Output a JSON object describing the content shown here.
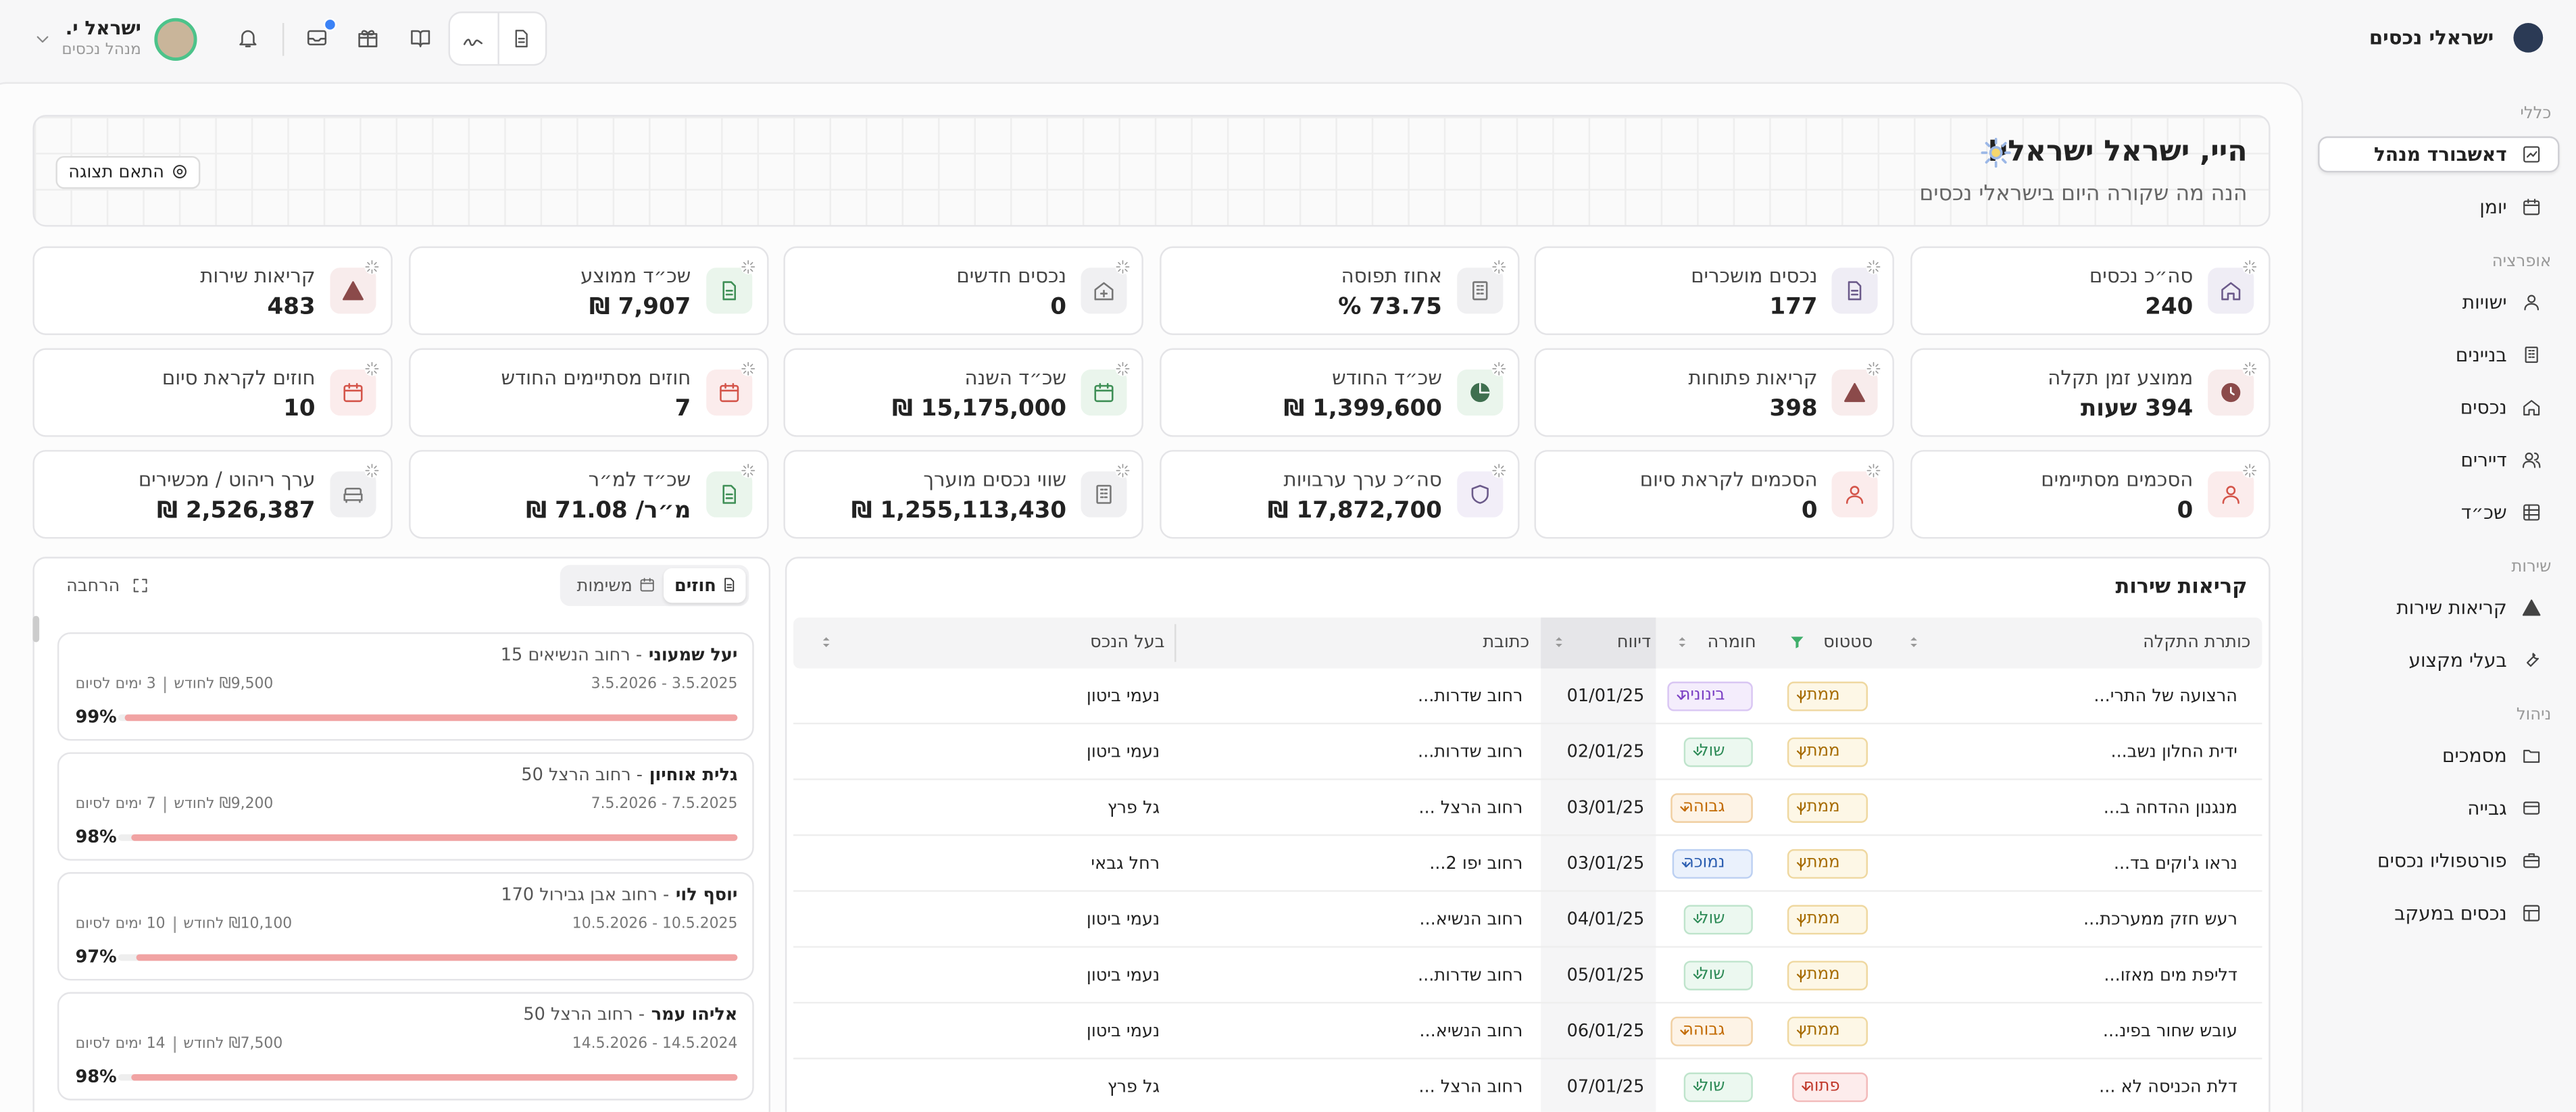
{
  "header": {
    "brand": "ישראלי נכסים",
    "user_name": "ישראל י.",
    "user_role": "מנהל נכסים"
  },
  "sidebar": {
    "sections": [
      {
        "title": "כללי",
        "items": [
          "דאשבורד מנהל",
          "יומן"
        ]
      },
      {
        "title": "אופרציה",
        "items": [
          "ישויות",
          "בניינים",
          "נכסים",
          "דיירים",
          "שכ״ד"
        ]
      },
      {
        "title": "שירות",
        "items": [
          "קריאות שירות",
          "בעלי מקצוע"
        ]
      },
      {
        "title": "ניהול",
        "items": [
          "מסמכים",
          "גבייה",
          "פורטפוליו נכסים",
          "נכסים במעקב"
        ]
      }
    ]
  },
  "welcome": {
    "title": "היי, ישראל ישראלי!",
    "subtitle": "הנה מה שקורה היום בישראלי נכסים",
    "customize_button": "התאם תצוגה"
  },
  "stats": [
    {
      "label": "סה״כ נכסים",
      "value": "240"
    },
    {
      "label": "נכסים מושכרים",
      "value": "177"
    },
    {
      "label": "אחוז תפוסה",
      "value": "73.75 %"
    },
    {
      "label": "נכסים חדשים",
      "value": "0"
    },
    {
      "label": "שכ״ד ממוצע",
      "value": "7,907 ₪"
    },
    {
      "label": "קריאות שירות",
      "value": "483"
    },
    {
      "label": "ממוצע זמן תקלה",
      "value": "394 שעות"
    },
    {
      "label": "קריאות פתוחות",
      "value": "398"
    },
    {
      "label": "שכ״ד החודש",
      "value": "1,399,600 ₪"
    },
    {
      "label": "שכ״ד השנה",
      "value": "15,175,000 ₪"
    },
    {
      "label": "חוזים מסתיימים החודש",
      "value": "7"
    },
    {
      "label": "חוזים לקראת סיום",
      "value": "10"
    },
    {
      "label": "הסכמים מסתיימים",
      "value": "0"
    },
    {
      "label": "הסכמים לקראת סיום",
      "value": "0"
    },
    {
      "label": "סה״כ ערך ערבויות",
      "value": "17,872,700 ₪"
    },
    {
      "label": "שווי נכסים מוערך",
      "value": "1,255,113,430 ₪"
    },
    {
      "label": "שכ״ד למ״ר",
      "value": "מ״ר/ 71.08 ₪"
    },
    {
      "label": "ערך ריהוט / מכשירים",
      "value": "2,526,387 ₪"
    }
  ],
  "service_calls": {
    "title": "קריאות שירות",
    "columns": [
      "כותרת התקלה",
      "סטטוס",
      "חומרה",
      "דיווח",
      "כתובת",
      "בעל הנכס"
    ],
    "rows": [
      [
        "הרצועה של התרי...",
        "ממתין",
        "בינונית",
        "01/01/25",
        "רחוב שדרות...",
        "נעמי ביטון"
      ],
      [
        "ידית החלון נשב...",
        "ממתין",
        "שולי",
        "02/01/25",
        "רחוב שדרות...",
        "נעמי ביטון"
      ],
      [
        "מנגנון ההדחה ב...",
        "ממתין",
        "גבוהה",
        "03/01/25",
        "רחוב הרצל ...",
        "גל פרץ"
      ],
      [
        "נראו ג'וקים בד...",
        "ממתין",
        "נמוכה",
        "03/01/25",
        "רחוב יפו 2...",
        "רחל גבאי"
      ],
      [
        "רעש חזק ממערכת...",
        "ממתין",
        "שולי",
        "04/01/25",
        "רחוב הנשיא...",
        "נעמי ביטון"
      ],
      [
        "דליפת מים מאזו...",
        "ממתין",
        "שולי",
        "05/01/25",
        "רחוב שדרות...",
        "נעמי ביטון"
      ],
      [
        "עובש שחור בפינ...",
        "ממתין",
        "גבוהה",
        "06/01/25",
        "רחוב הנשיא...",
        "נעמי ביטון"
      ],
      [
        "דלת הכניסה לא ...",
        "פתוח",
        "שולי",
        "07/01/25",
        "רחוב הרצל ...",
        "גל פרץ"
      ]
    ]
  },
  "contracts": {
    "tabs": [
      "חוזים",
      "משימות"
    ],
    "expand": "הרחבה",
    "cards": [
      {
        "tenant": "יעל שמעוני",
        "address": "- רחוב הנשיאים 15",
        "dates": "3.5.2025 - 3.5.2026",
        "rent": "₪9,500 לחודש",
        "remaining": "3 ימים לסיום",
        "progress": 99,
        "progress_label": "99%"
      },
      {
        "tenant": "גלית אוחיון",
        "address": "- רחוב הרצל 50",
        "dates": "7.5.2025 - 7.5.2026",
        "rent": "₪9,200 לחודש",
        "remaining": "7 ימים לסיום",
        "progress": 98,
        "progress_label": "98%"
      },
      {
        "tenant": "יוסף לוי",
        "address": "- רחוב אבן גבירול 170",
        "dates": "10.5.2025 - 10.5.2026",
        "rent": "₪10,100 לחודש",
        "remaining": "10 ימים לסיום",
        "progress": 97,
        "progress_label": "97%"
      },
      {
        "tenant": "אליהו עמר",
        "address": "- רחוב הרצל 50",
        "dates": "14.5.2024 - 14.5.2026",
        "rent": "₪7,500 לחודש",
        "remaining": "14 ימים לסיום",
        "progress": 98,
        "progress_label": "98%"
      }
    ]
  }
}
